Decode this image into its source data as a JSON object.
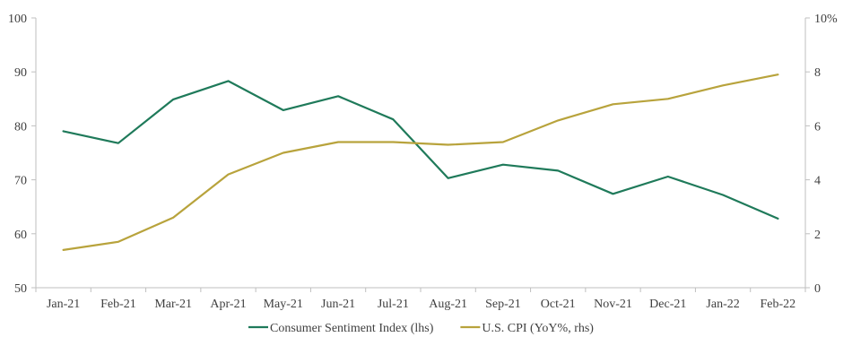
{
  "chart_data": {
    "type": "line",
    "categories": [
      "Jan-21",
      "Feb-21",
      "Mar-21",
      "Apr-21",
      "May-21",
      "Jun-21",
      "Jul-21",
      "Aug-21",
      "Sep-21",
      "Oct-21",
      "Nov-21",
      "Dec-21",
      "Jan-22",
      "Feb-22"
    ],
    "series": [
      {
        "name": "Consumer Sentiment Index (lhs)",
        "axis": "left",
        "color": "#1f7a5a",
        "values": [
          79.0,
          76.8,
          84.9,
          88.3,
          82.9,
          85.5,
          81.2,
          70.3,
          72.8,
          71.7,
          67.4,
          70.6,
          67.2,
          62.8
        ]
      },
      {
        "name": "U.S. CPI (YoY%, rhs)",
        "axis": "right",
        "color": "#b8a33c",
        "values": [
          1.4,
          1.7,
          2.6,
          4.2,
          5.0,
          5.4,
          5.4,
          5.3,
          5.4,
          6.2,
          6.8,
          7.0,
          7.5,
          7.9
        ]
      }
    ],
    "y_left": {
      "ylim": [
        50,
        100
      ],
      "ticks": [
        "50",
        "60",
        "70",
        "80",
        "90",
        "100"
      ]
    },
    "y_right": {
      "ylim": [
        0,
        10
      ],
      "ticks": [
        "0",
        "2",
        "4",
        "6",
        "8",
        "10%"
      ]
    },
    "legend_position": "bottom",
    "grid": false
  }
}
